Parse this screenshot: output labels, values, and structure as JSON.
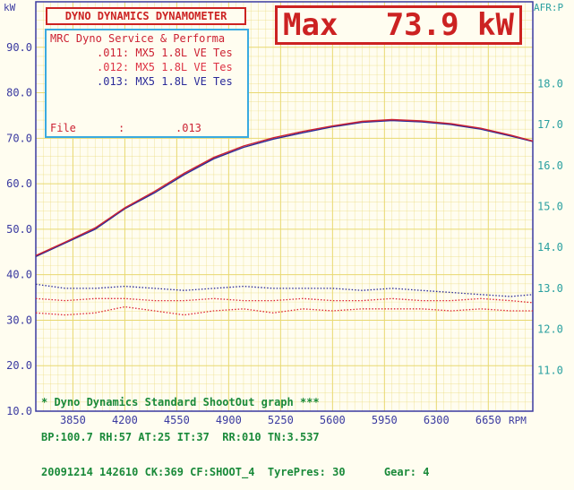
{
  "header": {
    "title": "DYNO DYNAMICS DYNAMOMETER",
    "max_label": "Max",
    "max_value": "73.9 kW",
    "left_unit": "kW",
    "right_unit": "AFR:P",
    "x_unit": "RPM"
  },
  "legend": {
    "heading": "MRC Dyno Service & Performa",
    "runs": [
      {
        "label": ".011: MX5 1.8L VE Tes",
        "color": "#cc2233"
      },
      {
        "label": ".012: MX5 1.8L VE Tes",
        "color": "#dd3344"
      },
      {
        "label": ".013: MX5 1.8L VE Tes",
        "color": "#2a2a99"
      }
    ],
    "file_label": "File",
    "file_sep": ":",
    "file_value": ".013"
  },
  "footer": {
    "line1": "* Dyno Dynamics Standard ShootOut graph ***",
    "line2": "BP:100.7 RH:57 AT:25 IT:37  RR:010 TN:3.537",
    "line3": "20091214 142610 CK:369 CF:SHOOT_4  TyrePres: 30      Gear: 4"
  },
  "colors": {
    "grid": "#e8d870",
    "axis": "#3a3aa0",
    "accent": "#cc2222",
    "power_blue": "#2a2a99",
    "power_red": "#cc2233",
    "afr_red": "#dd2233",
    "afr_blue": "#2a2a99"
  },
  "chart_data": {
    "type": "line",
    "xlabel": "RPM",
    "ylabel": "kW",
    "y2label": "AFR:P",
    "xlim": [
      3600,
      6950
    ],
    "ylim": [
      10,
      100
    ],
    "y2lim": [
      10,
      20
    ],
    "x_ticks": [
      "3850",
      "4200",
      "4550",
      "4900",
      "5250",
      "5600",
      "5950",
      "6300",
      "6650"
    ],
    "y_ticks": [
      "10.0",
      "20.0",
      "30.0",
      "40.0",
      "50.0",
      "60.0",
      "70.0",
      "80.0",
      "90.0"
    ],
    "y2_ticks": [
      "11.0",
      "12.0",
      "13.0",
      "14.0",
      "15.0",
      "16.0",
      "17.0",
      "18.0"
    ],
    "grid": true,
    "series": [
      {
        "name": ".013: MX5 1.8L VE Tes",
        "axis": "left",
        "style": "solid",
        "color": "#2a2a99",
        "x": [
          3600,
          3800,
          4000,
          4200,
          4400,
          4600,
          4800,
          5000,
          5200,
          5400,
          5600,
          5800,
          6000,
          6200,
          6400,
          6600,
          6800,
          6950
        ],
        "y": [
          44.0,
          47.0,
          50.0,
          54.5,
          58.0,
          62.0,
          65.5,
          68.0,
          69.8,
          71.2,
          72.5,
          73.5,
          73.9,
          73.6,
          73.0,
          72.0,
          70.5,
          69.3
        ]
      },
      {
        "name": ".011: MX5 1.8L VE Tes",
        "axis": "left",
        "style": "solid",
        "color": "#cc2233",
        "x": [
          3600,
          3800,
          4000,
          4200,
          4400,
          4600,
          4800,
          5000,
          5200,
          5400,
          5600,
          5800,
          6000,
          6200,
          6400,
          6600,
          6800,
          6950
        ],
        "y": [
          44.2,
          47.2,
          50.3,
          54.7,
          58.3,
          62.3,
          65.8,
          68.3,
          70.1,
          71.5,
          72.7,
          73.7,
          74.1,
          73.8,
          73.2,
          72.2,
          70.7,
          69.4
        ]
      },
      {
        "name": "AFR .013",
        "axis": "right",
        "style": "dotted",
        "color": "#2a2a99",
        "x": [
          3600,
          3800,
          4000,
          4200,
          4400,
          4600,
          4800,
          5000,
          5200,
          5400,
          5600,
          5800,
          6000,
          6200,
          6400,
          6600,
          6800,
          6950
        ],
        "y": [
          13.1,
          13.0,
          13.0,
          13.05,
          13.0,
          12.95,
          13.0,
          13.05,
          13.0,
          13.0,
          13.0,
          12.95,
          13.0,
          12.95,
          12.9,
          12.85,
          12.8,
          12.85
        ]
      },
      {
        "name": "AFR .011",
        "axis": "right",
        "style": "dotted",
        "color": "#dd2233",
        "x": [
          3600,
          3800,
          4000,
          4200,
          4400,
          4600,
          4800,
          5000,
          5200,
          5400,
          5600,
          5800,
          6000,
          6200,
          6400,
          6600,
          6800,
          6950
        ],
        "y": [
          12.75,
          12.7,
          12.75,
          12.75,
          12.7,
          12.7,
          12.75,
          12.7,
          12.7,
          12.75,
          12.7,
          12.7,
          12.75,
          12.7,
          12.7,
          12.75,
          12.7,
          12.65
        ]
      },
      {
        "name": "AFR .012",
        "axis": "right",
        "style": "dotted",
        "color": "#dd2233",
        "x": [
          3600,
          3800,
          4000,
          4200,
          4400,
          4600,
          4800,
          5000,
          5200,
          5400,
          5600,
          5800,
          6000,
          6200,
          6400,
          6600,
          6800,
          6950
        ],
        "y": [
          12.4,
          12.35,
          12.4,
          12.55,
          12.45,
          12.35,
          12.45,
          12.5,
          12.4,
          12.5,
          12.45,
          12.5,
          12.5,
          12.5,
          12.45,
          12.5,
          12.45,
          12.45
        ]
      }
    ]
  }
}
